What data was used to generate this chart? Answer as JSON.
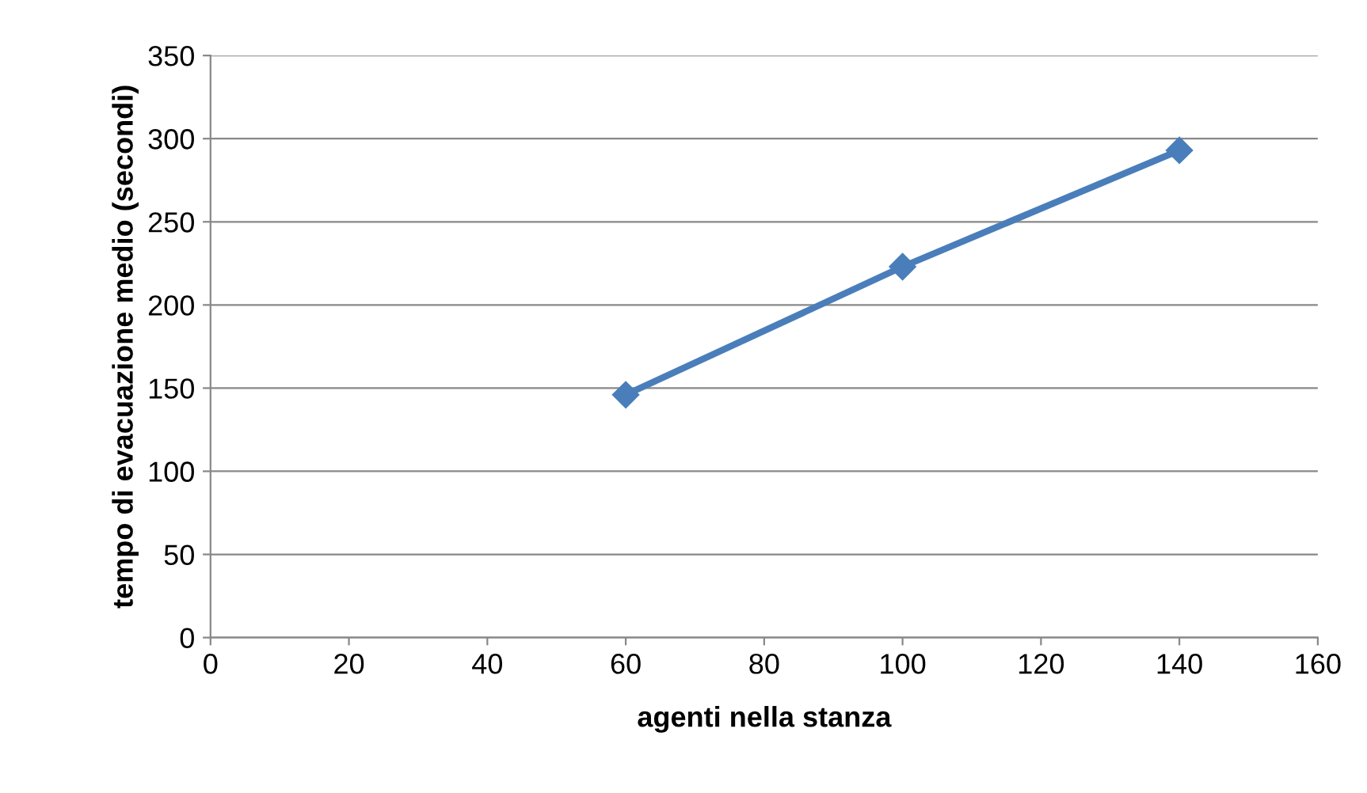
{
  "chart_data": {
    "type": "line",
    "xlabel": "agenti nella stanza",
    "ylabel": "tempo di evacuazione medio (secondi)",
    "x": [
      60,
      100,
      140
    ],
    "series": [
      {
        "color": "#4a7ebb",
        "values": [
          146,
          223,
          293
        ]
      }
    ],
    "xlim": [
      0,
      160
    ],
    "xticks": [
      0,
      20,
      40,
      60,
      80,
      100,
      120,
      140,
      160
    ],
    "ylim": [
      0,
      350
    ],
    "yticks": [
      0,
      50,
      100,
      150,
      200,
      250,
      300,
      350
    ],
    "grid": "y",
    "legend": false,
    "marker": "diamond",
    "line_style": "solid"
  }
}
